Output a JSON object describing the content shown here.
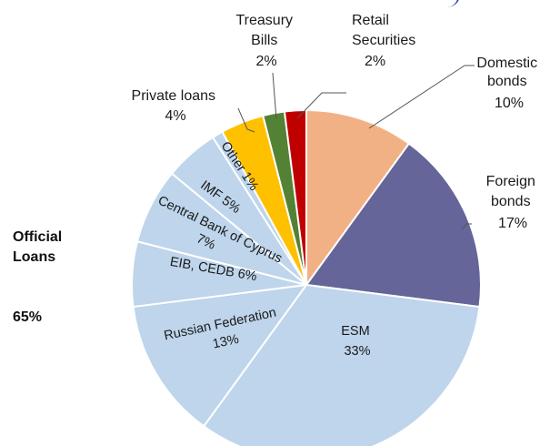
{
  "chart_data": {
    "type": "pie",
    "slices": [
      {
        "label": "Domestic bonds",
        "value": 10,
        "color": "#f2b184"
      },
      {
        "label": "Foreign bonds",
        "value": 17,
        "color": "#656599"
      },
      {
        "label": "ESM",
        "value": 33,
        "color": "#bed5eb"
      },
      {
        "label": "Russian Federation",
        "value": 13,
        "color": "#bed5eb"
      },
      {
        "label": "EIB, CEDB",
        "value": 6,
        "color": "#bed5eb"
      },
      {
        "label": "Central Bank of Cyprus",
        "value": 7,
        "color": "#bed5eb"
      },
      {
        "label": "IMF",
        "value": 5,
        "color": "#bed5eb"
      },
      {
        "label": "Other",
        "value": 1,
        "color": "#bed5eb"
      },
      {
        "label": "Private loans",
        "value": 4,
        "color": "#ffc000"
      },
      {
        "label": "Treasury Bills",
        "value": 2,
        "color": "#548235"
      },
      {
        "label": "Retail Securities",
        "value": 2,
        "color": "#c00000"
      }
    ],
    "labels": {
      "domestic": [
        "Domestic",
        "bonds",
        "10%"
      ],
      "foreign": [
        "Foreign",
        "bonds",
        "17%"
      ],
      "esm": [
        "ESM",
        "33%"
      ],
      "russia": [
        "Russian Federation",
        "13%"
      ],
      "eib": "EIB, CEDB 6%",
      "cbc": [
        "Central Bank of Cyprus",
        "7%"
      ],
      "imf": "IMF 5%",
      "other": "Other 1%",
      "private": [
        "Private loans",
        "4%"
      ],
      "tbills": [
        "Treasury",
        "Bills",
        "2%"
      ],
      "retail": [
        "Retail",
        "Securities",
        "2%"
      ]
    },
    "group_label": {
      "line1": "Official",
      "line2": "Loans",
      "value": "65%"
    }
  }
}
